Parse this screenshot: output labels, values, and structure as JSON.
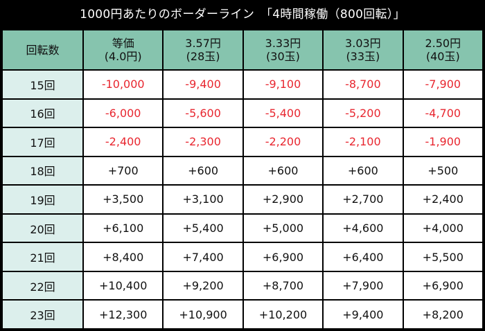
{
  "title": "1000円あたりのボーダーライン　「4時間稼働（800回転）」",
  "colors": {
    "header_bg": "#86c4ae",
    "rowhead_bg": "#dcefec",
    "negative_text": "#e8262f",
    "frame": "#000000"
  },
  "header": {
    "corner": "回転数",
    "columns": [
      {
        "line1": "等価",
        "line2": "(4.0円)"
      },
      {
        "line1": "3.57円",
        "line2": "(28玉)"
      },
      {
        "line1": "3.33円",
        "line2": "(30玉)"
      },
      {
        "line1": "3.03円",
        "line2": "(33玉)"
      },
      {
        "line1": "2.50円",
        "line2": "(40玉)"
      }
    ]
  },
  "rows": [
    {
      "label": "15回",
      "values": [
        "-10,000",
        "-9,400",
        "-9,100",
        "-8,700",
        "-7,900"
      ]
    },
    {
      "label": "16回",
      "values": [
        "-6,000",
        "-5,600",
        "-5,400",
        "-5,200",
        "-4,700"
      ]
    },
    {
      "label": "17回",
      "values": [
        "-2,400",
        "-2,300",
        "-2,200",
        "-2,100",
        "-1,900"
      ]
    },
    {
      "label": "18回",
      "values": [
        "+700",
        "+600",
        "+600",
        "+600",
        "+500"
      ]
    },
    {
      "label": "19回",
      "values": [
        "+3,500",
        "+3,100",
        "+2,900",
        "+2,700",
        "+2,400"
      ]
    },
    {
      "label": "20回",
      "values": [
        "+6,100",
        "+5,400",
        "+5,000",
        "+4,600",
        "+4,000"
      ]
    },
    {
      "label": "21回",
      "values": [
        "+8,400",
        "+7,400",
        "+6,900",
        "+6,400",
        "+5,500"
      ]
    },
    {
      "label": "22回",
      "values": [
        "+10,400",
        "+9,200",
        "+8,700",
        "+7,900",
        "+6,900"
      ]
    },
    {
      "label": "23回",
      "values": [
        "+12,300",
        "+10,900",
        "+10,200",
        "+9,400",
        "+8,200"
      ]
    }
  ]
}
